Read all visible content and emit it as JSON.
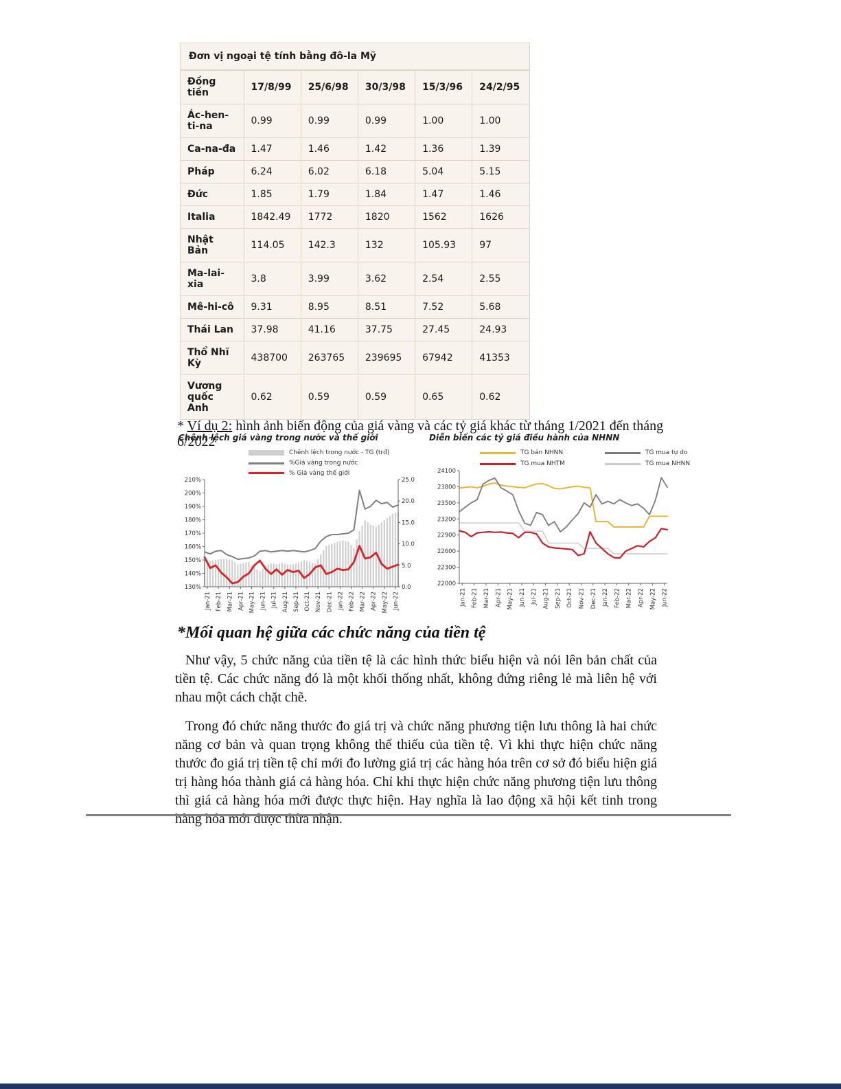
{
  "colors": {
    "table_bg": "#f8f3ec",
    "table_border": "#e0d6c6",
    "rule_gray": "#838383",
    "footer_bar": "#1f3864",
    "bar_gray": "#cfcfcf",
    "line_gray": "#7f7f7f",
    "line_red": "#d8232a",
    "line_yellow": "#e9b63b",
    "line_lightgray": "#c9c9c9"
  },
  "table": {
    "title": "Đơn vị ngoại tệ tính bằng đô-la Mỹ",
    "columns": [
      "Đồng tiền",
      "17/8/99",
      "25/6/98",
      "30/3/98",
      "15/3/96",
      "24/2/95"
    ],
    "rows": [
      {
        "label": "Ác-hen-ti-na",
        "values": [
          "0.99",
          "0.99",
          "0.99",
          "1.00",
          "1.00"
        ]
      },
      {
        "label": "Ca-na-đa",
        "values": [
          "1.47",
          "1.46",
          "1.42",
          "1.36",
          "1.39"
        ]
      },
      {
        "label": "Pháp",
        "values": [
          "6.24",
          "6.02",
          "6.18",
          "5.04",
          "5.15"
        ]
      },
      {
        "label": "Đức",
        "values": [
          "1.85",
          "1.79",
          "1.84",
          "1.47",
          "1.46"
        ]
      },
      {
        "label": "Italia",
        "values": [
          "1842.49",
          "1772",
          "1820",
          "1562",
          "1626"
        ]
      },
      {
        "label": "Nhật Bản",
        "values": [
          "114.05",
          "142.3",
          "132",
          "105.93",
          "97"
        ]
      },
      {
        "label": "Ma-lai-xia",
        "values": [
          "3.8",
          "3.99",
          "3.62",
          "2.54",
          "2.55"
        ]
      },
      {
        "label": "Mê-hi-cô",
        "values": [
          "9.31",
          "8.95",
          "8.51",
          "7.52",
          "5.68"
        ]
      },
      {
        "label": "Thái Lan",
        "values": [
          "37.98",
          "41.16",
          "37.75",
          "27.45",
          "24.93"
        ]
      },
      {
        "label": "Thổ Nhĩ Kỳ",
        "values": [
          "438700",
          "263765",
          "239695",
          "67942",
          "41353"
        ]
      },
      {
        "label": "Vương quốc Anh",
        "values": [
          "0.62",
          "0.59",
          "0.59",
          "0.65",
          "0.62"
        ]
      }
    ]
  },
  "example": {
    "prefix": "* ",
    "label": "Ví dụ 2:",
    "text": " hình ảnh biến động của giá vàng và các tỷ giá khác từ tháng 1/2021 đến tháng 6/2022"
  },
  "heading": "*Mối quan hệ giữa các chức năng của tiền tệ",
  "paragraphs": [
    "Như vậy, 5 chức năng của tiền tệ là các hình thức biểu hiện và nói lên bản chất của tiền tệ. Các chức năng đó là một khối thống nhất, không đứng riêng lẻ mà liên hệ với nhau một cách chặt chẽ.",
    "Trong đó chức năng thước đo giá trị và chức năng phương tiện lưu thông là hai chức năng cơ bản và quan trọng không thể thiếu của tiền tệ. Vì khi thực hiện chức năng thước đo giá trị tiền tệ chỉ mới đo lường giá trị các hàng hóa trên cơ sở đó biểu hiện giá trị hàng hóa thành giá cả hàng hóa. Chỉ khi thực hiện chức năng phương tiện lưu thông thì giá cả hàng hóa mới được thực hiện. Hay nghĩa là lao động xã hội kết tinh trong hàng hóa mới được thừa nhận."
  ],
  "chart_data": [
    {
      "type": "bar+line",
      "title": "Chênh lệch giá vàng trong nước và thế giới",
      "x_labels": [
        "Jan-21",
        "Feb-21",
        "Mar-21",
        "Apr-21",
        "May-21",
        "Jun-21",
        "Jul-21",
        "Aug-21",
        "Sep-21",
        "Oct-21",
        "Nov-21",
        "Dec-21",
        "Jan-22",
        "Feb-22",
        "Mar-22",
        "Apr-22",
        "May-22",
        "Jun-22"
      ],
      "left_axis": {
        "min": 130,
        "max": 210,
        "step": 10,
        "suffix": "%"
      },
      "right_axis": {
        "min": 0,
        "max": 25,
        "step": 5,
        "decimals": 1
      },
      "legend": [
        {
          "label": "Chênh lệch trong nước - TG (trđ)",
          "color": "#cfcfcf",
          "kind": "bar"
        },
        {
          "label": "%Giá vàng trong nước",
          "color": "#7f7f7f",
          "kind": "line"
        },
        {
          "label": "% Giá vàng thế giới",
          "color": "#d8232a",
          "kind": "line"
        }
      ],
      "bars": {
        "name": "Chênh lệch trong nước - TG (trđ)",
        "axis": "right",
        "color": "#cfcfcf",
        "values": [
          6.3,
          6.0,
          6.2,
          6.5,
          6.5,
          6.2,
          5.2,
          5.5,
          5.8,
          4.5,
          3.5,
          5.0,
          5.5,
          5.2,
          5.6,
          5.2,
          5.2,
          5.6,
          6.2,
          5.8,
          5.4,
          7.5,
          9.5,
          10.0,
          10.5,
          10.8,
          10.5,
          9.0,
          13.0,
          15.5,
          14.5,
          14.0,
          15.0,
          16.0,
          17.0,
          17.5
        ]
      },
      "lines": [
        {
          "name": "%Giá vàng trong nước",
          "axis": "left",
          "color": "#7f7f7f",
          "width": 2.0,
          "values": [
            156,
            154.5,
            156.5,
            157,
            154,
            152.5,
            150.5,
            151,
            151.5,
            153,
            156.5,
            157,
            156,
            156.5,
            157,
            156.5,
            157,
            156.5,
            156,
            157,
            158.5,
            164,
            167.5,
            169,
            169,
            169.5,
            170,
            172.5,
            202,
            188,
            190,
            194.5,
            192,
            193,
            189.5,
            191
          ]
        },
        {
          "name": "% Giá vàng thế giới",
          "axis": "left",
          "color": "#d8232a",
          "width": 2.8,
          "values": [
            152,
            144,
            146,
            140.5,
            137,
            132.5,
            133.5,
            137.5,
            140,
            146,
            149.5,
            143.5,
            139.5,
            143,
            139,
            142.5,
            141,
            142,
            136.5,
            139.5,
            144.5,
            146,
            139.5,
            141,
            143.5,
            142.5,
            143,
            148.5,
            160.5,
            151,
            152,
            155.5,
            147,
            143.5,
            145,
            146.5
          ]
        }
      ]
    },
    {
      "type": "line",
      "title": "Diễn biến các tỷ giá điều hành của NHNN",
      "x_labels": [
        "Jan-21",
        "Feb-21",
        "Mar-21",
        "Apr-21",
        "May-21",
        "Jun-21",
        "Jul-21",
        "Aug-21",
        "Sep-21",
        "Oct-21",
        "Nov-21",
        "Dec-21",
        "Jan-22",
        "Feb-22",
        "Mar-22",
        "Apr-22",
        "May-22",
        "Jun-22"
      ],
      "left_axis": {
        "min": 22000,
        "max": 24100,
        "step": 300
      },
      "legend": [
        {
          "label": "TG bán NHNN",
          "color": "#e9b63b",
          "kind": "line"
        },
        {
          "label": "TG mua tự do",
          "color": "#7a7a7a",
          "kind": "line"
        },
        {
          "label": "TG mua NHTM",
          "color": "#c9202b",
          "kind": "line"
        },
        {
          "label": "TG mua NHNN",
          "color": "#c9c9c9",
          "kind": "line"
        }
      ],
      "lines": [
        {
          "name": "TG mua NHNN",
          "axis": "left",
          "color": "#c9c9c9",
          "width": 1.4,
          "values": [
            23125,
            23125,
            23125,
            23125,
            23125,
            23125,
            23125,
            23125,
            23125,
            23125,
            23125,
            22975,
            22975,
            22975,
            22975,
            22750,
            22750,
            22750,
            22750,
            22750,
            22750,
            22650,
            22650,
            22650,
            22650,
            22650,
            22550,
            22550,
            22550,
            22550,
            22550,
            22550,
            22550,
            22550,
            22550,
            22550
          ]
        },
        {
          "name": "TG bán NHNN",
          "axis": "left",
          "color": "#e9b63b",
          "width": 2.0,
          "values": [
            23775,
            23790,
            23800,
            23780,
            23810,
            23850,
            23870,
            23830,
            23810,
            23800,
            23790,
            23780,
            23820,
            23850,
            23860,
            23820,
            23770,
            23760,
            23780,
            23800,
            23810,
            23790,
            23780,
            23150,
            23150,
            23150,
            23050,
            23050,
            23050,
            23050,
            23050,
            23050,
            23250,
            23250,
            23250,
            23250
          ]
        },
        {
          "name": "TG mua tự do",
          "axis": "left",
          "color": "#7a7a7a",
          "width": 1.8,
          "values": [
            23330,
            23420,
            23500,
            23560,
            23850,
            23920,
            23960,
            23780,
            23720,
            23650,
            23350,
            23120,
            23080,
            23320,
            23280,
            23080,
            23150,
            22960,
            23050,
            23180,
            23300,
            23500,
            23420,
            23650,
            23480,
            23530,
            23480,
            23560,
            23500,
            23450,
            23480,
            23400,
            23280,
            23550,
            23970,
            23790
          ]
        },
        {
          "name": "TG mua NHTM",
          "axis": "left",
          "color": "#c9202b",
          "width": 2.2,
          "values": [
            22980,
            22950,
            22870,
            22940,
            22950,
            22960,
            22950,
            22955,
            22940,
            22930,
            22850,
            22950,
            22950,
            22920,
            22750,
            22680,
            22660,
            22650,
            22640,
            22630,
            22520,
            22550,
            22960,
            22750,
            22650,
            22550,
            22480,
            22470,
            22600,
            22650,
            22700,
            22680,
            22780,
            22850,
            23020,
            23000
          ]
        }
      ]
    }
  ]
}
